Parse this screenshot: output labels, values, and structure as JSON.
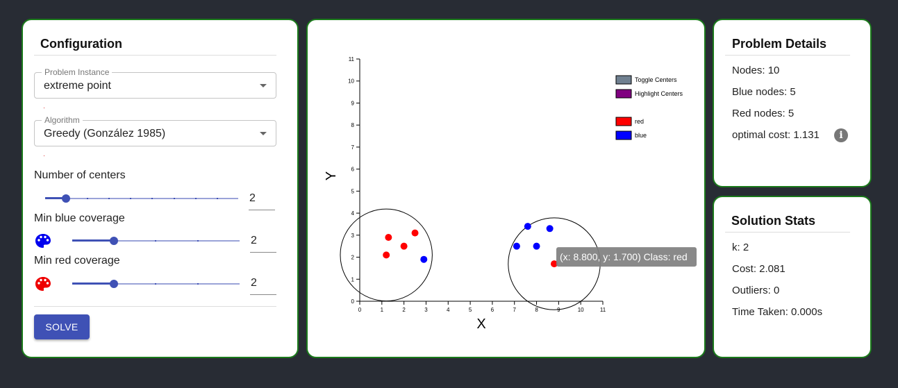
{
  "config": {
    "title": "Configuration",
    "problem_instance": {
      "legend": "Problem Instance",
      "value": "extreme point"
    },
    "algorithm": {
      "legend": "Algorithm",
      "value": "Greedy (González 1985)"
    },
    "centers": {
      "label": "Number of centers",
      "value": "2"
    },
    "blue_coverage": {
      "label": "Min blue coverage",
      "value": "2",
      "icon": "palette-icon",
      "color": "#0000ee"
    },
    "red_coverage": {
      "label": "Min red coverage",
      "value": "2",
      "icon": "palette-icon",
      "color": "#ee0000"
    },
    "solve_label": "SOLVE"
  },
  "details": {
    "title": "Problem Details",
    "nodes": "Nodes: 10",
    "blue_nodes": "Blue nodes: 5",
    "red_nodes": "Red nodes: 5",
    "optimal_cost": "optimal cost: 1.131",
    "info_icon": "i"
  },
  "stats": {
    "title": "Solution Stats",
    "k": "k: 2",
    "cost": "Cost: 2.081",
    "outliers": "Outliers: 0",
    "time": "Time Taken: 0.000s"
  },
  "chart_data": {
    "type": "scatter",
    "xlabel": "X",
    "ylabel": "Y",
    "xlim": [
      0,
      11
    ],
    "ylim": [
      0,
      11
    ],
    "xticks": [
      "0",
      "1",
      "2",
      "3",
      "4",
      "5",
      "6",
      "7",
      "8",
      "9",
      "10",
      "11"
    ],
    "yticks": [
      "0",
      "1",
      "2",
      "3",
      "4",
      "5",
      "6",
      "7",
      "8",
      "9",
      "10",
      "11"
    ],
    "legend": [
      {
        "label": "Toggle Centers",
        "color": "#708090"
      },
      {
        "label": "Highlight Centers",
        "color": "#800080"
      },
      {
        "label": "red",
        "color": "#ff0000"
      },
      {
        "label": "blue",
        "color": "#0000ff"
      }
    ],
    "series": [
      {
        "name": "red",
        "color": "#ff0000",
        "points": [
          [
            1.3,
            2.9
          ],
          [
            2.0,
            2.5
          ],
          [
            2.5,
            3.1
          ],
          [
            1.2,
            2.1
          ],
          [
            8.8,
            1.7
          ]
        ]
      },
      {
        "name": "blue",
        "color": "#0000ff",
        "points": [
          [
            2.9,
            1.9
          ],
          [
            7.6,
            3.4
          ],
          [
            8.6,
            3.3
          ],
          [
            7.1,
            2.5
          ],
          [
            8.0,
            2.5
          ]
        ]
      }
    ],
    "centers": [
      {
        "x": 1.2,
        "y": 2.1,
        "radius": 2.081
      },
      {
        "x": 8.8,
        "y": 1.7,
        "radius": 2.081
      }
    ],
    "tooltip": "(x: 8.800, y: 1.700) Class: red"
  }
}
